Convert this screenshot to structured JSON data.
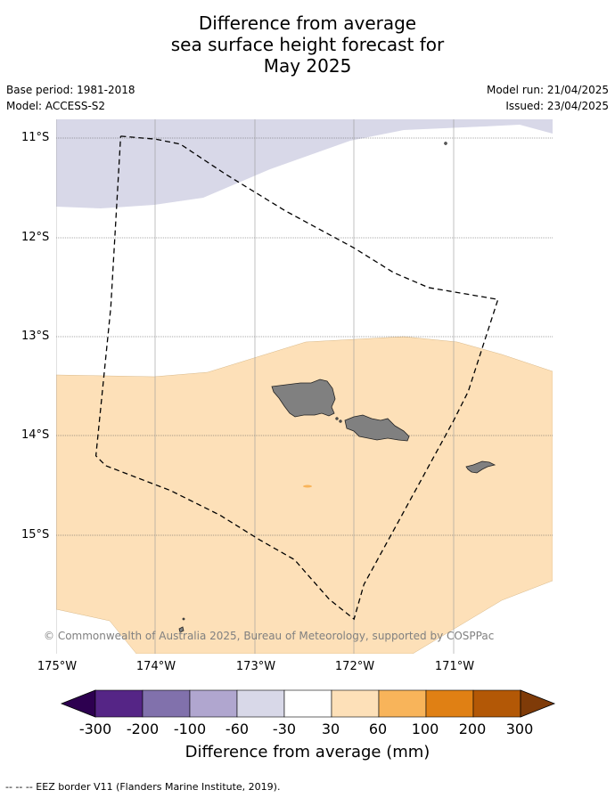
{
  "title": {
    "line1": "Difference from average",
    "line2": "sea surface height forecast for",
    "line3": "May 2025"
  },
  "meta": {
    "base_period": "Base period: 1981-2018",
    "model": "Model: ACCESS-S2",
    "model_run": "Model run: 21/04/2025",
    "issued": "Issued: 23/04/2025"
  },
  "map": {
    "lat_labels": [
      "11°S",
      "12°S",
      "13°S",
      "14°S",
      "15°S"
    ],
    "lon_labels": [
      "175°W",
      "174°W",
      "173°W",
      "172°W",
      "171°W"
    ],
    "extent": {
      "lon_min": -175,
      "lon_max": -170,
      "lat_top": -10.8,
      "lat_bottom": -16.2
    },
    "land_color": "#808080",
    "colors": {
      "neg_30_60": "#d8d8e8",
      "pos_30_60": "#fde0b8",
      "pos_60_100": "#f8b45a"
    },
    "copyright": "© Commonwealth of Australia 2025, Bureau of Meteorology, supported by COSPPac",
    "eez_border": [
      [
        -174.35,
        -10.97
      ],
      [
        -174.0,
        -11.0
      ],
      [
        -173.75,
        -11.05
      ],
      [
        -173.3,
        -11.35
      ],
      [
        -172.7,
        -11.72
      ],
      [
        -172.0,
        -12.1
      ],
      [
        -171.6,
        -12.35
      ],
      [
        -171.25,
        -12.5
      ],
      [
        -170.55,
        -12.62
      ],
      [
        -170.85,
        -13.55
      ],
      [
        -171.0,
        -13.85
      ],
      [
        -171.6,
        -14.95
      ],
      [
        -171.9,
        -15.5
      ],
      [
        -172.0,
        -15.85
      ],
      [
        -172.25,
        -15.65
      ],
      [
        -172.6,
        -15.25
      ],
      [
        -172.95,
        -15.05
      ],
      [
        -173.35,
        -14.8
      ],
      [
        -173.85,
        -14.55
      ],
      [
        -174.5,
        -14.3
      ],
      [
        -174.6,
        -14.2
      ],
      [
        -174.45,
        -12.7
      ],
      [
        -174.35,
        -10.97
      ]
    ]
  },
  "colorbar": {
    "title": "Difference from average (mm)",
    "ticks": [
      "-300",
      "-200",
      "-100",
      "-60",
      "-30",
      "30",
      "60",
      "100",
      "200",
      "300"
    ],
    "colors": [
      "#2d0050",
      "#552586",
      "#8171ac",
      "#b0a6cf",
      "#d8d8e8",
      "#ffffff",
      "#fde0b8",
      "#f8b45a",
      "#e08014",
      "#b35806",
      "#7f3b08"
    ]
  },
  "footer": {
    "legend": "-- -- -- EEZ border V11 (Flanders Marine Institute, 2019)."
  }
}
